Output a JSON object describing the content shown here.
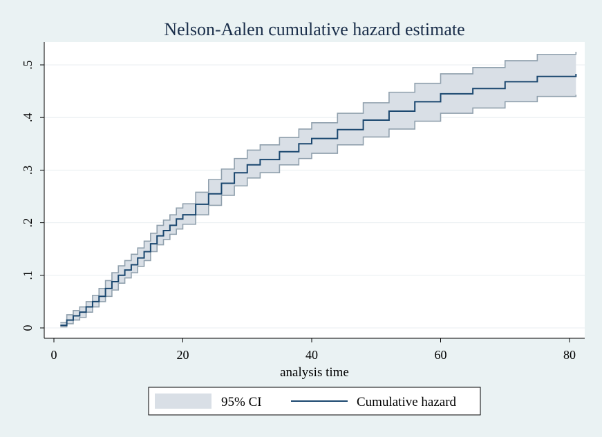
{
  "chart_data": {
    "type": "line",
    "title": "Nelson-Aalen cumulative hazard estimate",
    "xlabel": "analysis time",
    "ylabel": "",
    "xlim": [
      0,
      81
    ],
    "ylim": [
      0,
      0.5
    ],
    "x_ticks": [
      0,
      20,
      40,
      60,
      80
    ],
    "x_tick_labels": [
      "0",
      "20",
      "40",
      "60",
      "80"
    ],
    "y_ticks": [
      0,
      0.1,
      0.2,
      0.3,
      0.4,
      0.5
    ],
    "y_tick_labels": [
      "0",
      ".1",
      ".2",
      ".3",
      ".4",
      ".5"
    ],
    "grid": true,
    "legend_position": "bottom",
    "series": [
      {
        "name": "Cumulative hazard",
        "kind": "step-line",
        "color": "#1a476f",
        "x": [
          1,
          2,
          3,
          4,
          5,
          6,
          7,
          8,
          9,
          10,
          11,
          12,
          13,
          14,
          15,
          16,
          17,
          18,
          19,
          20,
          22,
          24,
          26,
          28,
          30,
          32,
          35,
          38,
          40,
          44,
          48,
          52,
          56,
          60,
          65,
          70,
          75,
          81
        ],
        "y": [
          0.005,
          0.015,
          0.023,
          0.03,
          0.04,
          0.05,
          0.06,
          0.075,
          0.088,
          0.1,
          0.11,
          0.12,
          0.133,
          0.145,
          0.16,
          0.175,
          0.185,
          0.195,
          0.207,
          0.215,
          0.235,
          0.255,
          0.275,
          0.295,
          0.31,
          0.32,
          0.335,
          0.35,
          0.36,
          0.377,
          0.395,
          0.412,
          0.43,
          0.445,
          0.455,
          0.468,
          0.478,
          0.483
        ]
      },
      {
        "name": "95% CI",
        "kind": "band",
        "color": "#d9dfe6",
        "edge_color": "#90a0ad",
        "x": [
          1,
          2,
          3,
          4,
          5,
          6,
          7,
          8,
          9,
          10,
          11,
          12,
          13,
          14,
          15,
          16,
          17,
          18,
          19,
          20,
          22,
          24,
          26,
          28,
          30,
          32,
          35,
          38,
          40,
          44,
          48,
          52,
          56,
          60,
          65,
          70,
          75,
          81
        ],
        "lower": [
          0.002,
          0.008,
          0.015,
          0.02,
          0.03,
          0.04,
          0.05,
          0.06,
          0.072,
          0.085,
          0.095,
          0.105,
          0.117,
          0.128,
          0.145,
          0.158,
          0.168,
          0.178,
          0.188,
          0.197,
          0.215,
          0.233,
          0.252,
          0.27,
          0.285,
          0.295,
          0.31,
          0.322,
          0.332,
          0.348,
          0.363,
          0.378,
          0.393,
          0.408,
          0.418,
          0.43,
          0.44,
          0.443
        ],
        "upper": [
          0.01,
          0.025,
          0.033,
          0.04,
          0.05,
          0.062,
          0.075,
          0.09,
          0.105,
          0.118,
          0.128,
          0.14,
          0.152,
          0.165,
          0.18,
          0.195,
          0.205,
          0.215,
          0.228,
          0.236,
          0.258,
          0.282,
          0.302,
          0.322,
          0.338,
          0.348,
          0.362,
          0.378,
          0.39,
          0.408,
          0.428,
          0.448,
          0.465,
          0.483,
          0.495,
          0.508,
          0.52,
          0.525
        ]
      }
    ],
    "legend": [
      "95% CI",
      "Cumulative hazard"
    ]
  },
  "colors": {
    "background": "#eaf2f3",
    "plot_background": "#ffffff",
    "grid": "#e8eef0",
    "line": "#1a476f",
    "band_fill": "#d9dfe6",
    "band_edge": "#90a0ad",
    "title": "#1a2e4a"
  }
}
